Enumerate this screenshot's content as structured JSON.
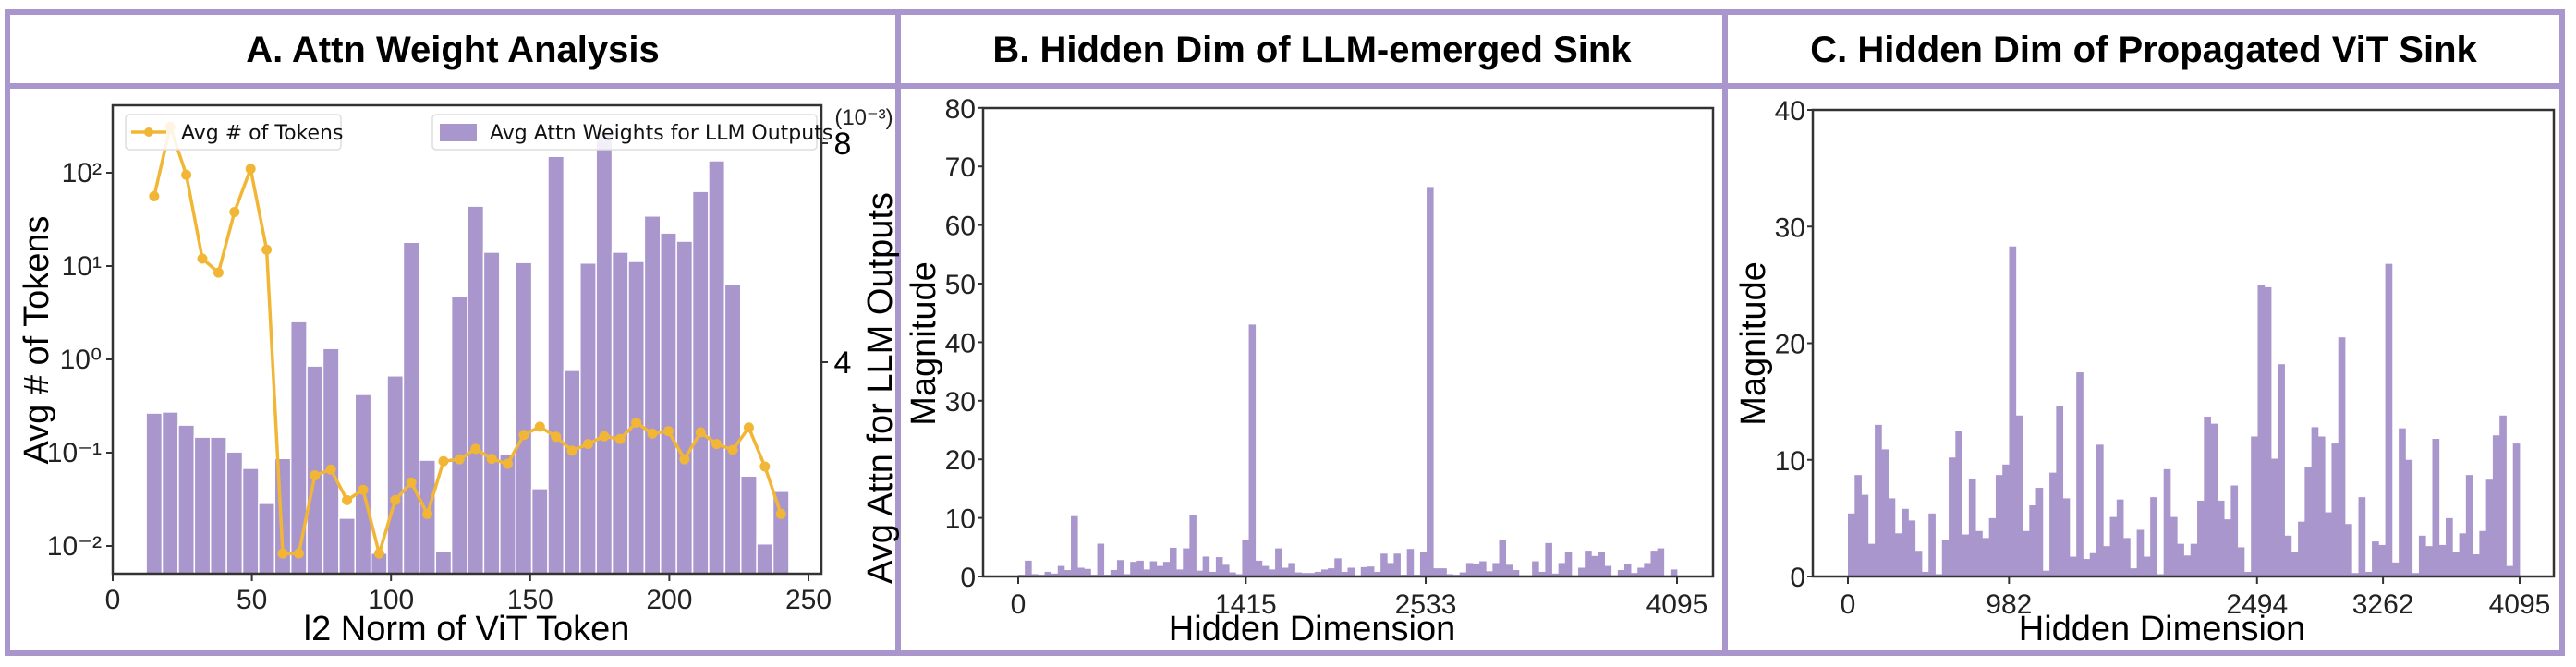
{
  "panels": [
    {
      "id": "A",
      "title": "A. Attn Weight Analysis"
    },
    {
      "id": "B",
      "title": "B. Hidden Dim of LLM-emerged Sink"
    },
    {
      "id": "C",
      "title": "C. Hidden Dim of Propagated ViT Sink"
    }
  ],
  "colors": {
    "frame": "#a996cc",
    "bar": "#a996cc",
    "line": "#f2b637"
  },
  "chart_data": [
    {
      "type": "bar+line",
      "title": "A. Attn Weight Analysis",
      "xlabel": "l2 Norm of ViT Token",
      "ylabel": "Avg # of Tokens",
      "ylabel_right": "Avg Attn for LLM Outputs",
      "right_axis_scale_label": "(10⁻³)",
      "xlim": [
        0,
        250
      ],
      "xticks": [
        0,
        50,
        100,
        150,
        200,
        250
      ],
      "ylim_left_log10": [
        -2.3,
        2.72
      ],
      "yticks_left": [
        "10²",
        "10¹",
        "10⁰",
        "10⁻¹",
        "10⁻²"
      ],
      "yticks_left_exp": [
        2,
        1,
        0,
        -1,
        -2
      ],
      "yticks_right": [
        8,
        4
      ],
      "bin_start": 12.0,
      "bin_width": 5.775,
      "legend": [
        "Avg # of Tokens",
        "Avg Attn Weights for LLM Outputs"
      ],
      "series": [
        {
          "name": "Avg Attn Weights for LLM Outputs",
          "type": "bar",
          "axis": "right",
          "unit": "1e-3",
          "values": [
            3.07,
            3.09,
            2.85,
            2.63,
            2.63,
            2.36,
            2.06,
            1.42,
            2.24,
            4.74,
            3.93,
            4.25,
            1.15,
            3.41,
            0.51,
            3.75,
            6.19,
            2.21,
            0.54,
            5.2,
            6.85,
            6.01,
            2.31,
            5.82,
            1.69,
            7.76,
            3.85,
            5.81,
            8.22,
            6.01,
            5.84,
            6.67,
            6.36,
            6.21,
            7.12,
            7.68,
            5.43,
            1.92,
            0.68,
            1.64
          ]
        },
        {
          "name": "Avg # of Tokens",
          "type": "line",
          "axis": "left",
          "scale": "log",
          "values": [
            56,
            310,
            95,
            12,
            8.5,
            38,
            110,
            15,
            0.0083,
            0.0083,
            0.057,
            0.066,
            0.031,
            0.04,
            0.0083,
            0.031,
            0.048,
            0.022,
            0.081,
            0.085,
            0.11,
            0.086,
            0.076,
            0.155,
            0.19,
            0.148,
            0.105,
            0.124,
            0.15,
            0.14,
            0.21,
            0.16,
            0.17,
            0.085,
            0.165,
            0.124,
            0.107,
            0.186,
            0.071,
            0.022
          ]
        }
      ],
      "grid": false,
      "legend_position": "top"
    },
    {
      "type": "bar",
      "title": "B. Hidden Dim of LLM-emerged Sink",
      "xlabel": "Hidden Dimension",
      "ylabel": "Magnitude",
      "xlim": [
        0,
        4095
      ],
      "xticks": [
        0,
        1415,
        2533,
        4095
      ],
      "ylim": [
        0,
        80
      ],
      "yticks": [
        0,
        10,
        20,
        30,
        40,
        50,
        60,
        70,
        80
      ],
      "values": [
        0.3,
        2.7,
        0.4,
        0.3,
        0.8,
        0.5,
        1.8,
        1.1,
        10.3,
        1.5,
        1.3,
        0.3,
        5.6,
        0.3,
        1.1,
        2.8,
        0.4,
        2.5,
        2.7,
        1.2,
        2.6,
        1.8,
        2.5,
        4.9,
        1.2,
        4.8,
        10.5,
        1.0,
        3.4,
        0.8,
        3.3,
        2.0,
        0.7,
        0.4,
        6.3,
        43.0,
        2.7,
        1.8,
        1.2,
        4.8,
        1.5,
        2.3,
        0.7,
        0.6,
        0.6,
        0.8,
        1.2,
        1.4,
        3.1,
        0.8,
        1.5,
        0.2,
        1.6,
        1.7,
        0.8,
        3.9,
        2.3,
        3.9,
        0.3,
        4.7,
        0.3,
        4.1,
        66.5,
        1.4,
        1.4,
        0.4,
        0.3,
        0.7,
        2.3,
        2.2,
        2.6,
        0.9,
        2.3,
        6.3,
        2.0,
        1.1,
        0.2,
        0.2,
        2.6,
        0.8,
        5.7,
        0.5,
        2.3,
        4.1,
        0.2,
        1.5,
        4.4,
        3.5,
        4.1,
        1.8,
        0.2,
        1.1,
        2.1,
        0.6,
        1.5,
        2.3,
        4.4,
        4.8,
        0.2,
        1.2
      ],
      "peaks": [
        {
          "x": 1415,
          "y": 43.0
        },
        {
          "x": 2533,
          "y": 66.5
        }
      ],
      "grid": false
    },
    {
      "type": "bar",
      "title": "C. Hidden Dim of Propagated ViT Sink",
      "xlabel": "Hidden Dimension",
      "ylabel": "Magnitude",
      "xlim": [
        0,
        4095
      ],
      "xticks": [
        0,
        982,
        2494,
        3262,
        4095
      ],
      "ylim": [
        0,
        40
      ],
      "yticks": [
        0,
        10,
        20,
        30,
        40
      ],
      "values": [
        5.4,
        8.7,
        7.0,
        2.8,
        13.0,
        10.9,
        6.7,
        3.7,
        5.8,
        4.8,
        2.2,
        0.4,
        5.4,
        0.2,
        3.1,
        10.2,
        12.5,
        3.6,
        8.4,
        3.9,
        3.3,
        5.0,
        8.7,
        9.6,
        28.3,
        13.8,
        3.9,
        6.1,
        7.6,
        0.5,
        8.9,
        14.6,
        6.7,
        1.7,
        17.5,
        1.5,
        2.0,
        11.3,
        2.6,
        5.1,
        6.6,
        3.3,
        0.7,
        4.0,
        1.7,
        6.8,
        0.2,
        9.2,
        5.1,
        2.8,
        1.8,
        2.8,
        6.5,
        13.7,
        13.1,
        6.5,
        4.9,
        7.8,
        2.5,
        0.4,
        12.0,
        25.0,
        24.8,
        10.1,
        18.2,
        3.5,
        2.1,
        4.7,
        9.4,
        12.8,
        12.0,
        5.5,
        11.4,
        20.5,
        4.5,
        0.3,
        6.8,
        0.4,
        3.0,
        2.7,
        26.8,
        1.2,
        12.7,
        10.0,
        0.3,
        3.5,
        2.6,
        11.8,
        2.7,
        5.0,
        2.1,
        3.7,
        8.7,
        1.9,
        3.9,
        8.3,
        12.1,
        13.8,
        0.9,
        11.4
      ],
      "peaks": [
        {
          "x": 982,
          "y": 28.3
        },
        {
          "x": 2494,
          "y": 25.0
        },
        {
          "x": 3262,
          "y": 26.8
        }
      ],
      "grid": false
    }
  ]
}
